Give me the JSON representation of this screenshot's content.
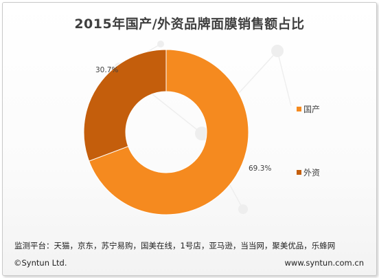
{
  "chart_data": {
    "type": "pie",
    "title": "2015年国产/外资品牌面膜销售额占比",
    "categories": [
      "国产",
      "外资"
    ],
    "values": [
      69.3,
      30.7
    ],
    "data_labels": [
      "69.3%",
      "30.7%"
    ],
    "colors": [
      "#f58a1f",
      "#c45e0c"
    ],
    "legend_position": "right"
  },
  "legend": {
    "items": [
      {
        "label": "国产",
        "color": "#f58a1f"
      },
      {
        "label": "外资",
        "color": "#c45e0c"
      }
    ]
  },
  "platforms_text": "监测平台：天猫，京东，苏宁易购，国美在线，1号店，亚马逊，当当网，聚美优品，乐蜂网",
  "footer": {
    "copyright": "©Syntun Ltd.",
    "website": "www.syntun.com.cn"
  }
}
